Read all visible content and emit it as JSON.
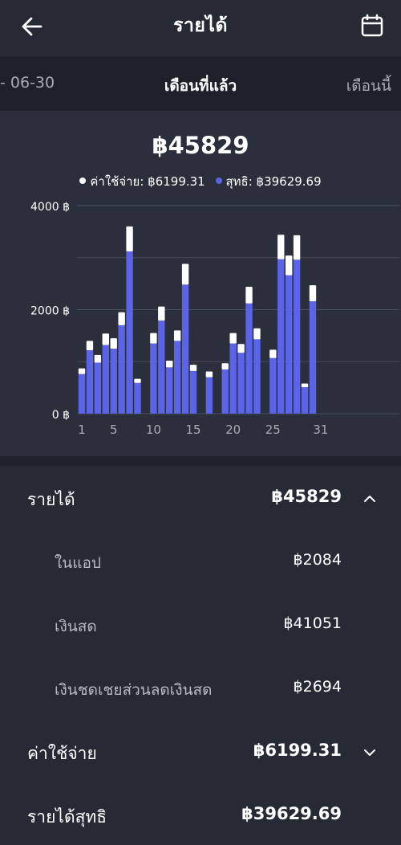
{
  "header": {
    "title": "รายได้",
    "back_icon": "arrow-left-icon",
    "calendar_icon": "calendar-icon"
  },
  "period": {
    "prev_label": "- 06-30",
    "current_label": "เดือนที่แล้ว",
    "next_label": "เดือนนี้"
  },
  "summary": {
    "total": "฿45829",
    "legend": [
      {
        "label": "ค่าใช้จ่าย: ฿6199.31",
        "color": "#ffffff"
      },
      {
        "label": "สุทธิ: ฿39629.69",
        "color": "#5b63e6"
      }
    ]
  },
  "chart_data": {
    "type": "bar",
    "stacked": true,
    "x": [
      1,
      2,
      3,
      4,
      5,
      6,
      7,
      8,
      9,
      10,
      11,
      12,
      13,
      14,
      15,
      16,
      17,
      18,
      19,
      20,
      21,
      22,
      23,
      24,
      25,
      26,
      27,
      28,
      29,
      30,
      31
    ],
    "x_tick_labels": [
      "1",
      "5",
      "10",
      "15",
      "20",
      "25",
      "31"
    ],
    "x_tick_values": [
      1,
      5,
      10,
      15,
      20,
      25,
      31
    ],
    "y_tick_labels": [
      "4000 ฿",
      "2000 ฿",
      "0 ฿"
    ],
    "ylim": [
      0,
      4000
    ],
    "grid": true,
    "series": [
      {
        "name": "สุทธิ",
        "color": "#5b63e6",
        "values": [
          760,
          1220,
          980,
          1320,
          1250,
          1700,
          3120,
          590,
          0,
          1350,
          1790,
          890,
          1400,
          2480,
          820,
          0,
          700,
          0,
          850,
          1350,
          1170,
          2120,
          1430,
          0,
          1070,
          2970,
          2660,
          2960,
          510,
          2160,
          0
        ]
      },
      {
        "name": "ค่าใช้จ่าย",
        "color": "#ffffff",
        "values": [
          110,
          180,
          150,
          220,
          200,
          250,
          480,
          80,
          0,
          200,
          270,
          130,
          200,
          400,
          120,
          0,
          110,
          0,
          120,
          200,
          170,
          320,
          210,
          0,
          160,
          470,
          380,
          470,
          70,
          310,
          0
        ]
      }
    ]
  },
  "breakdown": {
    "income": {
      "label": "รายได้",
      "value": "฿45829",
      "icon": "chevron-up-icon"
    },
    "items": [
      {
        "label": "ในแอป",
        "value": "฿2084"
      },
      {
        "label": "เงินสด",
        "value": "฿41051"
      },
      {
        "label": "เงินชดเชยส่วนลดเงินสด",
        "value": "฿2694"
      }
    ],
    "expense": {
      "label": "ค่าใช้จ่าย",
      "value": "฿6199.31",
      "icon": "chevron-down-icon"
    },
    "net": {
      "label": "รายได้สุทธิ",
      "value": "฿39629.69"
    }
  }
}
